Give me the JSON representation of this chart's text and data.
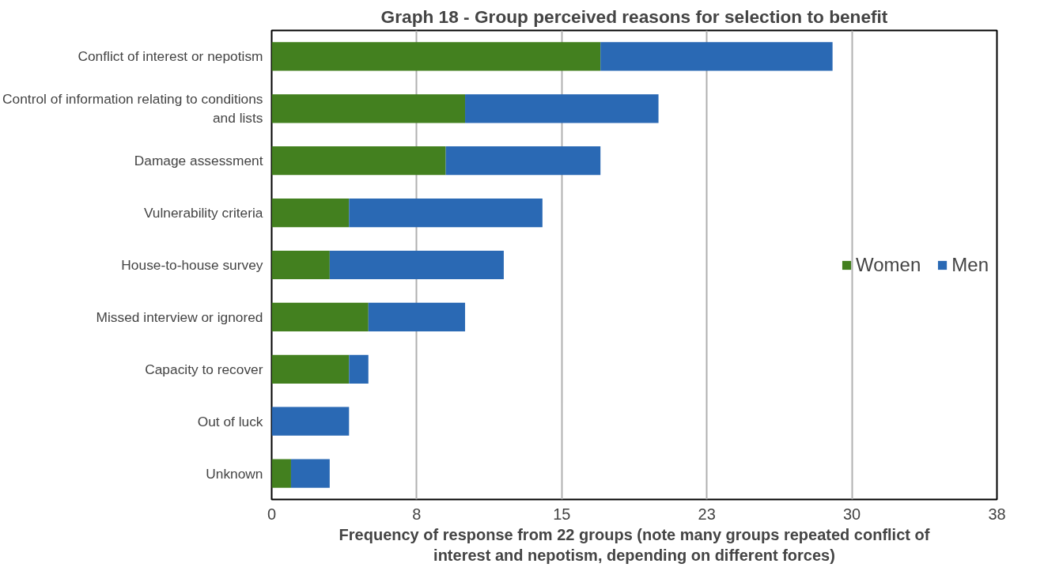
{
  "chart_data": {
    "type": "bar",
    "orientation": "horizontal",
    "stacked": true,
    "title": "Graph 18 - Group perceived reasons for selection to benefit",
    "xlabel": "Frequency of response from 22 groups (note many groups repeated conflict of\ninterest and nepotism, depending on different forces)",
    "categories": [
      "Conflict of interest or nepotism",
      "Control of information relating to conditions\nand lists",
      "Damage assessment",
      "Vulnerability criteria",
      "House-to-house survey",
      "Missed interview or ignored",
      "Capacity to recover",
      "Out of luck",
      "Unknown"
    ],
    "series": [
      {
        "name": "Women",
        "color": "#43801f",
        "values": [
          17,
          10,
          9,
          4,
          3,
          5,
          4,
          0,
          1
        ]
      },
      {
        "name": "Men",
        "color": "#2a69b4",
        "values": [
          12,
          10,
          8,
          10,
          9,
          5,
          1,
          4,
          2
        ]
      }
    ],
    "xlim": [
      0,
      37.5
    ],
    "xticks": [
      0,
      {
        "value": 7.5,
        "label": "8"
      },
      15,
      {
        "value": 22.5,
        "label": "23"
      },
      30,
      {
        "value": 37.5,
        "label": "38"
      }
    ],
    "grid": "x",
    "legend": "right"
  }
}
